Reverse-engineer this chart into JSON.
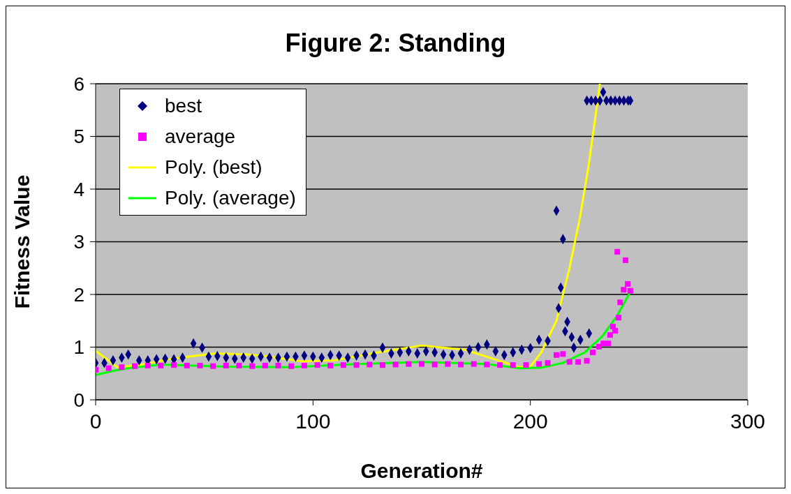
{
  "chart_data": {
    "type": "scatter",
    "title": "Figure 2: Standing",
    "xlabel": "Generation#",
    "ylabel": "Fitness  Value",
    "xlim": [
      0,
      300
    ],
    "xticks": [
      0,
      100,
      200,
      300
    ],
    "ylim": [
      0,
      6
    ],
    "yticks": [
      0,
      1,
      2,
      3,
      4,
      5,
      6
    ],
    "grid": "y",
    "legend": "top left",
    "series": [
      {
        "name": "best",
        "type": "scatter",
        "marker": "diamond",
        "color": "#000080",
        "x": [
          0,
          4,
          8,
          12,
          15,
          20,
          24,
          28,
          32,
          36,
          40,
          45,
          49,
          52,
          56,
          60,
          64,
          68,
          72,
          76,
          80,
          84,
          88,
          92,
          96,
          100,
          104,
          108,
          112,
          116,
          120,
          124,
          128,
          132,
          136,
          140,
          144,
          148,
          152,
          156,
          160,
          164,
          168,
          172,
          176,
          180,
          184,
          188,
          192,
          196,
          200,
          204,
          208,
          212,
          213,
          214,
          215,
          216,
          217,
          219,
          220,
          223,
          226,
          227,
          228,
          230,
          232,
          233.5,
          235,
          237,
          239,
          241,
          243,
          245,
          246
        ],
        "values": [
          0.7,
          0.7,
          0.75,
          0.8,
          0.86,
          0.75,
          0.75,
          0.77,
          0.78,
          0.77,
          0.8,
          1.07,
          0.99,
          0.82,
          0.83,
          0.8,
          0.78,
          0.8,
          0.78,
          0.82,
          0.8,
          0.8,
          0.82,
          0.82,
          0.84,
          0.82,
          0.8,
          0.85,
          0.84,
          0.8,
          0.84,
          0.86,
          0.84,
          0.99,
          0.88,
          0.9,
          0.92,
          0.88,
          0.92,
          0.9,
          0.86,
          0.85,
          0.88,
          0.95,
          1.0,
          1.05,
          0.92,
          0.85,
          0.9,
          0.95,
          0.98,
          1.14,
          1.12,
          3.59,
          1.74,
          2.13,
          3.05,
          1.3,
          1.48,
          1.19,
          0.99,
          1.14,
          5.68,
          1.26,
          5.68,
          5.68,
          5.68,
          5.84,
          5.68,
          5.68,
          5.68,
          5.68,
          5.68,
          5.68,
          5.68
        ]
      },
      {
        "name": "average",
        "type": "scatter",
        "marker": "square",
        "color": "#ff00ff",
        "x": [
          0,
          6,
          12,
          18,
          24,
          30,
          36,
          42,
          48,
          54,
          60,
          66,
          72,
          78,
          84,
          90,
          96,
          102,
          108,
          114,
          120,
          126,
          132,
          138,
          144,
          150,
          156,
          162,
          168,
          174,
          180,
          186,
          192,
          198,
          204,
          208,
          212,
          215,
          218,
          222,
          226,
          228.7,
          231.6,
          233.6,
          235.8,
          236.7,
          238,
          239,
          240,
          240.6,
          241.3,
          242.9,
          243.8,
          244.8,
          246
        ],
        "values": [
          0.57,
          0.6,
          0.62,
          0.64,
          0.65,
          0.65,
          0.66,
          0.65,
          0.65,
          0.64,
          0.65,
          0.65,
          0.64,
          0.65,
          0.65,
          0.64,
          0.65,
          0.66,
          0.65,
          0.66,
          0.66,
          0.67,
          0.66,
          0.67,
          0.68,
          0.68,
          0.67,
          0.68,
          0.67,
          0.68,
          0.67,
          0.66,
          0.66,
          0.66,
          0.68,
          0.7,
          0.85,
          0.87,
          0.72,
          0.72,
          0.74,
          0.9,
          1.01,
          1.07,
          1.07,
          1.23,
          1.39,
          1.31,
          2.81,
          1.56,
          1.85,
          2.09,
          2.65,
          2.2,
          2.07
        ]
      },
      {
        "name": "Poly. (best)",
        "type": "line",
        "marker": "none",
        "line_style": "solid",
        "color": "#ffff00",
        "x": [
          0,
          10,
          20,
          35,
          55,
          70,
          80,
          95,
          110,
          130,
          150,
          170,
          185,
          195,
          200,
          205,
          212,
          218,
          223,
          227,
          232
        ],
        "values": [
          0.93,
          0.62,
          0.66,
          0.78,
          0.88,
          0.86,
          0.82,
          0.73,
          0.75,
          0.9,
          1.03,
          0.95,
          0.75,
          0.62,
          0.63,
          0.9,
          1.5,
          2.5,
          3.5,
          4.5,
          6.0
        ]
      },
      {
        "name": "Poly. (average)",
        "type": "line",
        "marker": "none",
        "line_style": "solid",
        "color": "#00ff00",
        "x": [
          0,
          8,
          15,
          30,
          60,
          90,
          120,
          150,
          180,
          195,
          205,
          215,
          225,
          233,
          240,
          246
        ],
        "values": [
          0.47,
          0.55,
          0.6,
          0.67,
          0.63,
          0.62,
          0.68,
          0.72,
          0.68,
          0.6,
          0.61,
          0.7,
          0.9,
          1.2,
          1.6,
          2.05
        ]
      }
    ]
  }
}
